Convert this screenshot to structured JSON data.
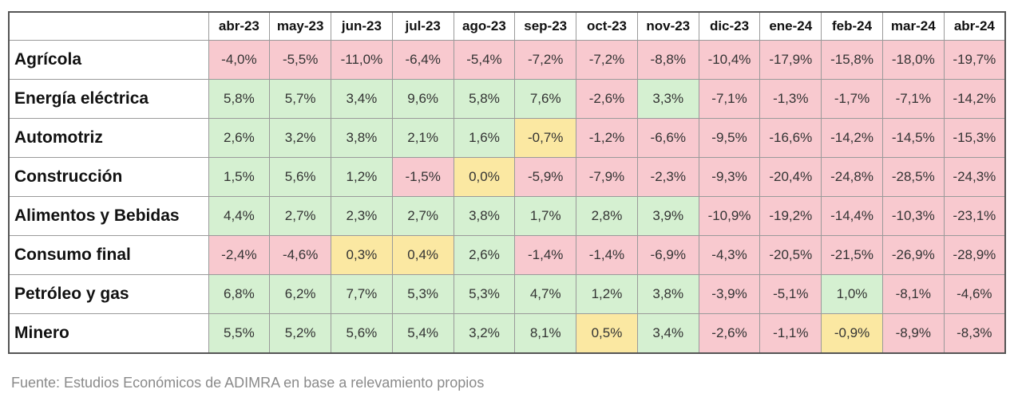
{
  "chart_data": {
    "type": "table",
    "columns": [
      "abr-23",
      "may-23",
      "jun-23",
      "jul-23",
      "ago-23",
      "sep-23",
      "oct-23",
      "nov-23",
      "dic-23",
      "ene-24",
      "feb-24",
      "mar-24",
      "abr-24"
    ],
    "rows": [
      {
        "label": "Agrícola",
        "values": [
          "-4,0%",
          "-5,5%",
          "-11,0%",
          "-6,4%",
          "-5,4%",
          "-7,2%",
          "-7,2%",
          "-8,8%",
          "-10,4%",
          "-17,9%",
          "-15,8%",
          "-18,0%",
          "-19,7%"
        ],
        "status": [
          "neg",
          "neg",
          "neg",
          "neg",
          "neg",
          "neg",
          "neg",
          "neg",
          "neg",
          "neg",
          "neg",
          "neg",
          "neg"
        ]
      },
      {
        "label": "Energía eléctrica",
        "values": [
          "5,8%",
          "5,7%",
          "3,4%",
          "9,6%",
          "5,8%",
          "7,6%",
          "-2,6%",
          "3,3%",
          "-7,1%",
          "-1,3%",
          "-1,7%",
          "-7,1%",
          "-14,2%"
        ],
        "status": [
          "pos",
          "pos",
          "pos",
          "pos",
          "pos",
          "pos",
          "neg",
          "pos",
          "neg",
          "neg",
          "neg",
          "neg",
          "neg"
        ]
      },
      {
        "label": "Automotriz",
        "values": [
          "2,6%",
          "3,2%",
          "3,8%",
          "2,1%",
          "1,6%",
          "-0,7%",
          "-1,2%",
          "-6,6%",
          "-9,5%",
          "-16,6%",
          "-14,2%",
          "-14,5%",
          "-15,3%"
        ],
        "status": [
          "pos",
          "pos",
          "pos",
          "pos",
          "pos",
          "neu",
          "neg",
          "neg",
          "neg",
          "neg",
          "neg",
          "neg",
          "neg"
        ]
      },
      {
        "label": "Construcción",
        "values": [
          "1,5%",
          "5,6%",
          "1,2%",
          "-1,5%",
          "0,0%",
          "-5,9%",
          "-7,9%",
          "-2,3%",
          "-9,3%",
          "-20,4%",
          "-24,8%",
          "-28,5%",
          "-24,3%"
        ],
        "status": [
          "pos",
          "pos",
          "pos",
          "neg",
          "neu",
          "neg",
          "neg",
          "neg",
          "neg",
          "neg",
          "neg",
          "neg",
          "neg"
        ]
      },
      {
        "label": "Alimentos y Bebidas",
        "values": [
          "4,4%",
          "2,7%",
          "2,3%",
          "2,7%",
          "3,8%",
          "1,7%",
          "2,8%",
          "3,9%",
          "-10,9%",
          "-19,2%",
          "-14,4%",
          "-10,3%",
          "-23,1%"
        ],
        "status": [
          "pos",
          "pos",
          "pos",
          "pos",
          "pos",
          "pos",
          "pos",
          "pos",
          "neg",
          "neg",
          "neg",
          "neg",
          "neg"
        ]
      },
      {
        "label": "Consumo final",
        "values": [
          "-2,4%",
          "-4,6%",
          "0,3%",
          "0,4%",
          "2,6%",
          "-1,4%",
          "-1,4%",
          "-6,9%",
          "-4,3%",
          "-20,5%",
          "-21,5%",
          "-26,9%",
          "-28,9%"
        ],
        "status": [
          "neg",
          "neg",
          "neu",
          "neu",
          "pos",
          "neg",
          "neg",
          "neg",
          "neg",
          "neg",
          "neg",
          "neg",
          "neg"
        ]
      },
      {
        "label": "Petróleo y gas",
        "values": [
          "6,8%",
          "6,2%",
          "7,7%",
          "5,3%",
          "5,3%",
          "4,7%",
          "1,2%",
          "3,8%",
          "-3,9%",
          "-5,1%",
          "1,0%",
          "-8,1%",
          "-4,6%"
        ],
        "status": [
          "pos",
          "pos",
          "pos",
          "pos",
          "pos",
          "pos",
          "pos",
          "pos",
          "neg",
          "neg",
          "pos",
          "neg",
          "neg"
        ]
      },
      {
        "label": "Minero",
        "values": [
          "5,5%",
          "5,2%",
          "5,6%",
          "5,4%",
          "3,2%",
          "8,1%",
          "0,5%",
          "3,4%",
          "-2,6%",
          "-1,1%",
          "-0,9%",
          "-8,9%",
          "-8,3%"
        ],
        "status": [
          "pos",
          "pos",
          "pos",
          "pos",
          "pos",
          "pos",
          "neu",
          "pos",
          "neg",
          "neg",
          "neu",
          "neg",
          "neg"
        ]
      }
    ]
  },
  "colors": {
    "positive": "#d5f0d1",
    "negative": "#f8c9cf",
    "neutral": "#fbe8a2"
  },
  "source": "Fuente: Estudios Económicos de ADIMRA en base a relevamiento propios"
}
